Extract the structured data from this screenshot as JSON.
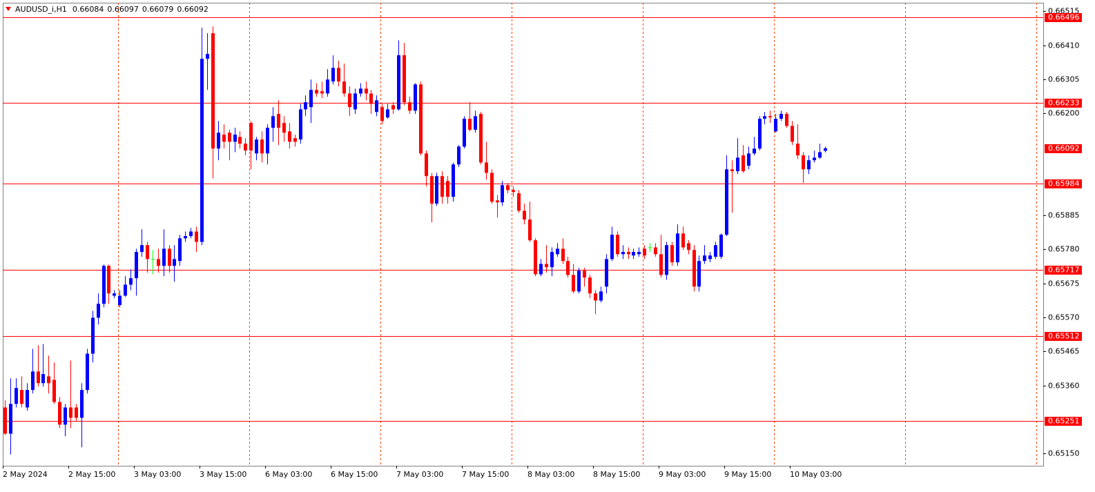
{
  "chart_data": {
    "type": "candlestick",
    "title": "AUDUSD_i,H1",
    "categories": [
      "2 May 2024",
      null,
      null,
      null,
      null,
      null,
      null,
      null,
      null,
      null,
      null,
      null,
      "2 May 15:00",
      null,
      null,
      null,
      null,
      null,
      null,
      null,
      null,
      null,
      null,
      null,
      "3 May 03:00",
      null,
      null,
      null,
      null,
      null,
      null,
      null,
      null,
      null,
      null,
      null,
      "3 May 15:00",
      null,
      null,
      null,
      null,
      null,
      null,
      null,
      null,
      null,
      null,
      null,
      "6 May 03:00",
      null,
      null,
      null,
      null,
      null,
      null,
      null,
      null,
      null,
      null,
      null,
      "6 May 15:00",
      null,
      null,
      null,
      null,
      null,
      null,
      null,
      null,
      null,
      null,
      null,
      "7 May 03:00",
      null,
      null,
      null,
      null,
      null,
      null,
      null,
      null,
      null,
      null,
      null,
      "7 May 15:00",
      null,
      null,
      null,
      null,
      null,
      null,
      null,
      null,
      null,
      null,
      null,
      "8 May 03:00",
      null,
      null,
      null,
      null,
      null,
      null,
      null,
      null,
      null,
      null,
      null,
      "8 May 15:00",
      null,
      null,
      null,
      null,
      null,
      null,
      null,
      null,
      null,
      null,
      null,
      "9 May 03:00",
      null,
      null,
      null,
      null,
      null,
      null,
      null,
      null,
      null,
      null,
      null,
      "9 May 15:00",
      null,
      null,
      null,
      null,
      null,
      null,
      null,
      null,
      null,
      null,
      null,
      "10 May 03:00",
      null,
      null,
      null,
      null,
      null,
      null
    ],
    "open": [
      0.65292,
      0.65211,
      0.65303,
      0.65346,
      0.65292,
      0.65346,
      0.65403,
      0.65367,
      0.65388,
      0.65377,
      0.65309,
      0.65239,
      0.65292,
      0.65292,
      0.6526,
      0.65346,
      0.65458,
      0.65569,
      0.65612,
      0.65729,
      0.65637,
      0.65608,
      0.65637,
      0.65671,
      0.65691,
      0.65772,
      0.65793,
      0.6575,
      0.6575,
      0.65729,
      0.65782,
      0.65729,
      0.65744,
      0.65814,
      0.65821,
      0.65835,
      0.65803,
      0.66368,
      0.66447,
      0.66091,
      0.66134,
      0.6614,
      0.66112,
      0.66127,
      0.66106,
      0.6617,
      0.66076,
      0.66119,
      0.66076,
      0.66155,
      0.66198,
      0.6617,
      0.66144,
      0.66123,
      0.66119,
      0.66212,
      0.66219,
      0.66272,
      0.66268,
      0.66261,
      0.66298,
      0.6634,
      0.66298,
      0.66261,
      0.66212,
      0.66261,
      0.66276,
      0.66261,
      0.66204,
      0.66219,
      0.66187,
      0.66225,
      0.66212,
      0.66379,
      0.66234,
      0.66208,
      0.66289,
      0.66076,
      0.66006,
      0.65921,
      0.66006,
      0.65991,
      0.65942,
      0.66042,
      0.66097,
      0.66183,
      0.66149,
      0.66198,
      0.66048,
      0.66016,
      0.65931,
      0.65925,
      0.65978,
      0.65963,
      0.65953,
      0.65899,
      0.65872,
      0.65808,
      0.65703,
      0.65735,
      0.65725,
      0.65765,
      0.65782,
      0.65744,
      0.65701,
      0.6565,
      0.65714,
      0.65693,
      0.65644,
      0.65622,
      0.65665,
      0.6575,
      0.65825,
      0.65765,
      0.65772,
      0.65761,
      0.65765,
      0.65782,
      0.65786,
      0.65786,
      0.65765,
      0.65701,
      0.65793,
      0.6574,
      0.65829,
      0.65799,
      0.65778,
      0.65665,
      0.65744,
      0.6575,
      0.65757,
      0.65757,
      0.65825,
      0.66027,
      0.66021,
      0.6607,
      0.66038,
      0.66076,
      0.66091,
      0.66183,
      0.66191,
      0.66144,
      0.66183,
      0.66198,
      0.66161,
      0.66106,
      0.6607,
      0.66027,
      0.66055,
      0.66063,
      0.66084
    ],
    "high": [
      0.65314,
      0.65382,
      0.65382,
      0.65388,
      0.65367,
      0.65473,
      0.65484,
      0.65488,
      0.65452,
      0.65431,
      0.65324,
      0.65303,
      0.65437,
      0.65303,
      0.65367,
      0.65473,
      0.6559,
      0.65644,
      0.65733,
      0.65733,
      0.65654,
      0.65654,
      0.65697,
      0.65718,
      0.65782,
      0.65842,
      0.65803,
      0.65778,
      0.65782,
      0.65842,
      0.65793,
      0.65793,
      0.65825,
      0.65835,
      0.65846,
      0.6585,
      0.66464,
      0.66447,
      0.66468,
      0.66176,
      0.66166,
      0.66149,
      0.66155,
      0.66144,
      0.66123,
      0.66176,
      0.66127,
      0.66144,
      0.66166,
      0.66219,
      0.6624,
      0.66191,
      0.6617,
      0.66134,
      0.66229,
      0.66255,
      0.66304,
      0.66293,
      0.66298,
      0.66336,
      0.66379,
      0.66362,
      0.66353,
      0.66283,
      0.66276,
      0.66293,
      0.66298,
      0.66272,
      0.66255,
      0.66229,
      0.66229,
      0.66234,
      0.66425,
      0.66417,
      0.66251,
      0.66293,
      0.66298,
      0.66085,
      0.66016,
      0.66016,
      0.66021,
      0.66006,
      0.66048,
      0.66102,
      0.66191,
      0.66234,
      0.66208,
      0.66204,
      0.66112,
      0.66027,
      0.65948,
      0.65991,
      0.65985,
      0.65974,
      0.65963,
      0.65921,
      0.65927,
      0.65814,
      0.6575,
      0.65793,
      0.65786,
      0.65799,
      0.65814,
      0.65757,
      0.65735,
      0.65723,
      0.65723,
      0.65701,
      0.65654,
      0.65665,
      0.65765,
      0.6585,
      0.65835,
      0.65793,
      0.65786,
      0.65782,
      0.65786,
      0.65793,
      0.65799,
      0.65799,
      0.65825,
      0.65803,
      0.65803,
      0.65857,
      0.6585,
      0.65808,
      0.65793,
      0.65761,
      0.65793,
      0.65772,
      0.65803,
      0.65829,
      0.6607,
      0.66055,
      0.66123,
      0.66102,
      0.66097,
      0.66127,
      0.66191,
      0.66204,
      0.66208,
      0.66198,
      0.66208,
      0.66204,
      0.66176,
      0.66166,
      0.6608,
      0.6607,
      0.66085,
      0.66106,
      0.66097
    ],
    "low": [
      0.65207,
      0.65147,
      0.65292,
      0.65292,
      0.65282,
      0.65335,
      0.65356,
      0.65356,
      0.65335,
      0.65303,
      0.65228,
      0.65203,
      0.65228,
      0.6525,
      0.65169,
      0.65335,
      0.65431,
      0.65548,
      0.65601,
      0.65612,
      0.65629,
      0.65601,
      0.65633,
      0.65654,
      0.65637,
      0.65757,
      0.65708,
      0.65703,
      0.65708,
      0.65697,
      0.65708,
      0.6568,
      0.65729,
      0.65803,
      0.65814,
      0.65772,
      0.65793,
      0.66272,
      0.65999,
      0.66055,
      0.66091,
      0.66055,
      0.6608,
      0.66091,
      0.6607,
      0.66027,
      0.66055,
      0.66048,
      0.66042,
      0.66112,
      0.66102,
      0.66112,
      0.66091,
      0.66097,
      0.66106,
      0.66191,
      0.6617,
      0.66251,
      0.66247,
      0.66251,
      0.66289,
      0.66283,
      0.66251,
      0.66191,
      0.66198,
      0.66251,
      0.6624,
      0.66198,
      0.66191,
      0.66166,
      0.66183,
      0.66198,
      0.66208,
      0.66225,
      0.66198,
      0.66198,
      0.6607,
      0.65974,
      0.65863,
      0.65914,
      0.65921,
      0.65921,
      0.65927,
      0.66034,
      0.66091,
      0.66144,
      0.6614,
      0.66042,
      0.65995,
      0.65921,
      0.65878,
      0.65914,
      0.65953,
      0.65942,
      0.65893,
      0.65857,
      0.65803,
      0.65697,
      0.65697,
      0.65708,
      0.65697,
      0.65757,
      0.65735,
      0.65693,
      0.65644,
      0.65644,
      0.65665,
      0.65629,
      0.6558,
      0.65616,
      0.65644,
      0.65744,
      0.65757,
      0.6575,
      0.6575,
      0.6575,
      0.65757,
      0.6575,
      0.65772,
      0.65757,
      0.65693,
      0.65686,
      0.65729,
      0.65729,
      0.65778,
      0.65765,
      0.6565,
      0.6565,
      0.65735,
      0.6574,
      0.6575,
      0.6575,
      0.65821,
      0.65893,
      0.66012,
      0.66016,
      0.66027,
      0.6607,
      0.66085,
      0.66166,
      0.6617,
      0.6614,
      0.66176,
      0.66155,
      0.66102,
      0.66059,
      0.65985,
      0.66012,
      0.66048,
      0.66059,
      0.66079
    ],
    "close": [
      0.65211,
      0.65303,
      0.65352,
      0.65303,
      0.65346,
      0.65403,
      0.65367,
      0.65395,
      0.65367,
      0.65309,
      0.65239,
      0.65292,
      0.6526,
      0.6526,
      0.65346,
      0.65458,
      0.65569,
      0.65612,
      0.65729,
      0.65644,
      0.65644,
      0.65637,
      0.65671,
      0.65691,
      0.65772,
      0.65793,
      0.6575,
      0.6575,
      0.65729,
      0.65782,
      0.65729,
      0.6575,
      0.65814,
      0.65821,
      0.65835,
      0.65803,
      0.66368,
      0.66383,
      0.66091,
      0.6614,
      0.66112,
      0.66112,
      0.66134,
      0.66106,
      0.66085,
      0.66085,
      0.66119,
      0.66076,
      0.66155,
      0.66191,
      0.66155,
      0.6614,
      0.66112,
      0.66112,
      0.66212,
      0.66234,
      0.66272,
      0.66261,
      0.66261,
      0.66304,
      0.6634,
      0.66298,
      0.66261,
      0.66219,
      0.66261,
      0.66276,
      0.66261,
      0.66229,
      0.6624,
      0.66176,
      0.66212,
      0.66212,
      0.66379,
      0.66234,
      0.66208,
      0.66289,
      0.66076,
      0.66006,
      0.65921,
      0.66006,
      0.65942,
      0.65942,
      0.66042,
      0.66097,
      0.66183,
      0.66149,
      0.66191,
      0.66048,
      0.66016,
      0.65927,
      0.65925,
      0.65978,
      0.65963,
      0.65957,
      0.65899,
      0.65872,
      0.65808,
      0.65703,
      0.65735,
      0.65725,
      0.65772,
      0.65782,
      0.65744,
      0.65701,
      0.6565,
      0.65714,
      0.65693,
      0.65644,
      0.65622,
      0.6565,
      0.6575,
      0.65825,
      0.65765,
      0.65772,
      0.65765,
      0.65772,
      0.65772,
      0.65761,
      0.65786,
      0.65765,
      0.65701,
      0.65793,
      0.6574,
      0.65829,
      0.65786,
      0.65778,
      0.65665,
      0.65744,
      0.65761,
      0.65761,
      0.65793,
      0.65825,
      0.66027,
      0.66021,
      0.66063,
      0.66021,
      0.66076,
      0.66091,
      0.66183,
      0.66191,
      0.66187,
      0.66183,
      0.66198,
      0.66161,
      0.66112,
      0.6607,
      0.66027,
      0.66055,
      0.66063,
      0.6608,
      0.66092
    ],
    "up_color": "#0000ff",
    "down_color": "#ff0000",
    "doji_color": "#00ff00",
    "ylim": [
      0.65112,
      0.66541
    ],
    "yticks": [
      0.66515,
      {
        "value": 0.6641,
        "label": "0.66410"
      },
      0.66305,
      {
        "value": 0.662,
        "label": "0.66200"
      },
      0.65885,
      {
        "value": 0.6578,
        "label": "0.65780"
      },
      0.65675,
      {
        "value": 0.6557,
        "label": "0.65570"
      },
      0.65465,
      {
        "value": 0.6536,
        "label": "0.65360"
      },
      {
        "value": 0.6515,
        "label": "0.65150"
      }
    ],
    "levels": [
      0.66496,
      0.66233,
      0.65984,
      0.65717,
      0.65512,
      0.65251
    ],
    "level_color": "#ff0000"
  }
}
